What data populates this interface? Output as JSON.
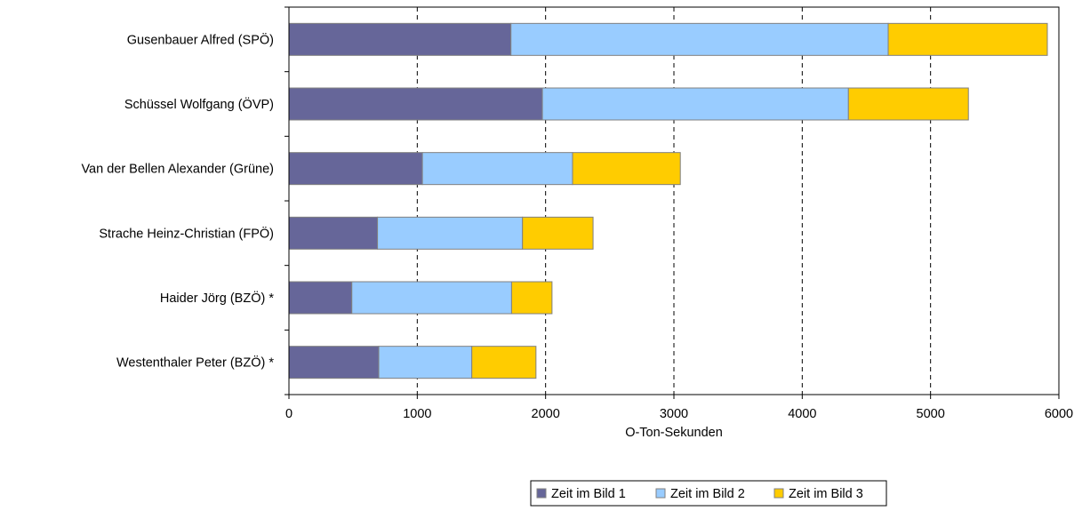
{
  "chart_data": {
    "type": "bar",
    "orientation": "horizontal",
    "stacked": true,
    "categories": [
      "Gusenbauer Alfred (SPÖ)",
      "Schüssel Wolfgang (ÖVP)",
      "Van der Bellen Alexander (Grüne)",
      "Strache Heinz-Christian (FPÖ)",
      "Haider Jörg (BZÖ) *",
      "Westenthaler Peter (BZÖ) *"
    ],
    "series": [
      {
        "name": "Zeit im Bild 1",
        "color": "#666699",
        "values": [
          1730,
          1975,
          1040,
          690,
          490,
          700
        ]
      },
      {
        "name": "Zeit im Bild 2",
        "color": "#99CCFF",
        "values": [
          2940,
          2385,
          1170,
          1130,
          1245,
          725
        ]
      },
      {
        "name": "Zeit im Bild 3",
        "color": "#FFCC00",
        "values": [
          1240,
          935,
          840,
          550,
          315,
          500
        ]
      }
    ],
    "xlabel": "O-Ton-Sekunden",
    "ylabel": "",
    "xlim": [
      0,
      6000
    ],
    "xticks": [
      0,
      1000,
      2000,
      3000,
      4000,
      5000,
      6000
    ],
    "grid": "vertical dashed",
    "legend_position": "bottom"
  }
}
